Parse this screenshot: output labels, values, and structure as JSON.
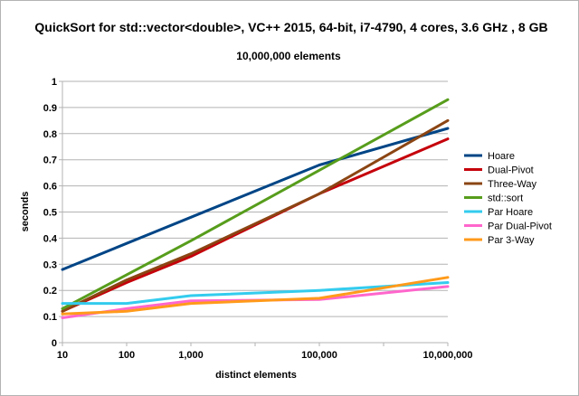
{
  "chart_data": {
    "type": "line",
    "title": "QuickSort for std::vector<double>, VC++ 2015, 64-bit, i7-4790, 4 cores, 3.6 GHz , 8 GB",
    "subtitle": "10,000,000 elements",
    "xlabel": "distinct elements",
    "ylabel": "seconds",
    "x": [
      10,
      100,
      1000,
      100000,
      10000000
    ],
    "x_tick_labels": [
      "10",
      "100",
      "1,000",
      "100,000",
      "10,000,000"
    ],
    "x_scale": "log",
    "xlim": [
      10,
      10000000
    ],
    "ylim": [
      0,
      1
    ],
    "y_ticks": [
      0,
      0.1,
      0.2,
      0.3,
      0.4,
      0.5,
      0.6,
      0.7,
      0.8,
      0.9,
      1
    ],
    "y_tick_labels": [
      "0",
      "0.1",
      "0.2",
      "0.3",
      "0.4",
      "0.5",
      "0.6",
      "0.7",
      "0.8",
      "0.9",
      "1"
    ],
    "grid": true,
    "legend_position": "right",
    "series": [
      {
        "name": "Hoare",
        "color": "#004586",
        "values": [
          0.28,
          0.38,
          0.48,
          0.68,
          0.82
        ]
      },
      {
        "name": "Dual-Pivot",
        "color": "#c5000b",
        "values": [
          0.12,
          0.23,
          0.33,
          0.57,
          0.78
        ]
      },
      {
        "name": "Three-Way",
        "color": "#8b4513",
        "values": [
          0.12,
          0.24,
          0.34,
          0.57,
          0.85
        ]
      },
      {
        "name": "std::sort",
        "color": "#579d1c",
        "values": [
          0.13,
          0.26,
          0.39,
          0.66,
          0.93
        ]
      },
      {
        "name": "Par Hoare",
        "color": "#33ccee",
        "values": [
          0.15,
          0.15,
          0.18,
          0.2,
          0.23
        ]
      },
      {
        "name": "Par Dual-Pivot",
        "color": "#ff66cc",
        "values": [
          0.095,
          0.13,
          0.16,
          0.165,
          0.215
        ]
      },
      {
        "name": "Par 3-Way",
        "color": "#ff9a1a",
        "values": [
          0.11,
          0.12,
          0.15,
          0.17,
          0.25
        ]
      }
    ]
  }
}
